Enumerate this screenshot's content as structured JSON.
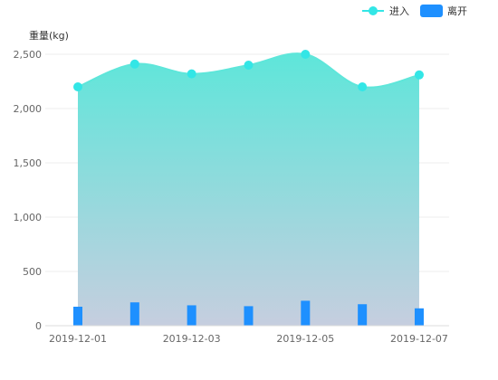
{
  "chart_data": {
    "type": "area",
    "ylabel": "重量(kg)",
    "ylim": [
      0,
      2500
    ],
    "yticks": [
      0,
      500,
      1000,
      1500,
      2000,
      2500
    ],
    "ytick_labels": [
      "0",
      "500",
      "1,000",
      "1,500",
      "2,000",
      "2,500"
    ],
    "dates": [
      "2019-12-01",
      "2019-12-02",
      "2019-12-03",
      "2019-12-04",
      "2019-12-05",
      "2019-12-06",
      "2019-12-07"
    ],
    "xtick_labels": [
      "2019-12-01",
      "2019-12-03",
      "2019-12-05",
      "2019-12-07"
    ],
    "legend_position": "top-right",
    "series": [
      {
        "name": "进入",
        "type": "area-line",
        "color": "#33e6e6",
        "values": [
          2200,
          2410,
          2320,
          2400,
          2500,
          2200,
          2310
        ]
      },
      {
        "name": "离开",
        "type": "bar",
        "color": "#1e90ff",
        "values": [
          175,
          215,
          188,
          180,
          230,
          198,
          160
        ]
      }
    ],
    "grid": true
  }
}
